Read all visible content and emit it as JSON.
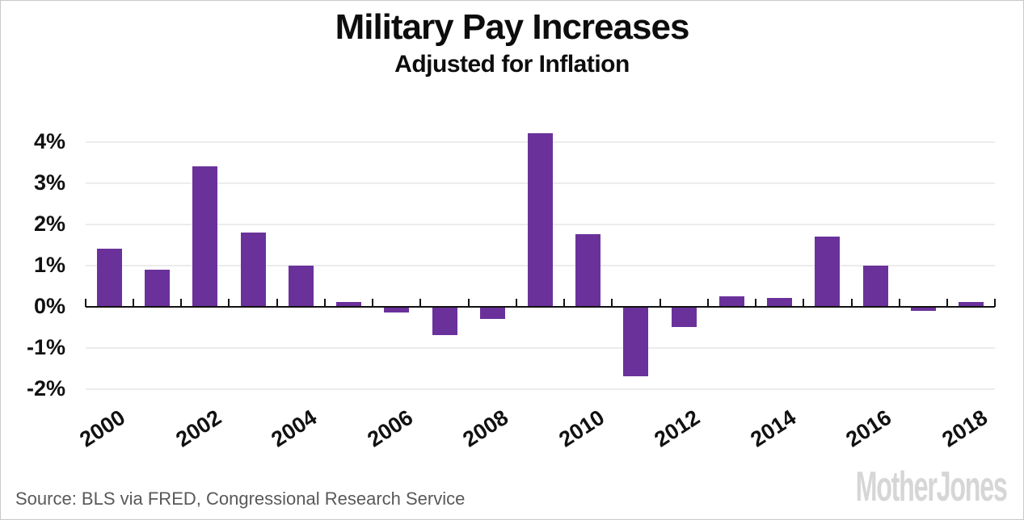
{
  "chart_data": {
    "type": "bar",
    "title": "Military Pay Increases",
    "subtitle": "Adjusted for Inflation",
    "categories": [
      2000,
      2001,
      2002,
      2003,
      2004,
      2005,
      2006,
      2007,
      2008,
      2009,
      2010,
      2011,
      2012,
      2013,
      2014,
      2015,
      2016,
      2017,
      2018
    ],
    "values": [
      1.4,
      0.9,
      3.4,
      1.8,
      1.0,
      0.1,
      -0.15,
      -0.7,
      -0.3,
      4.2,
      1.75,
      -1.7,
      -0.5,
      0.25,
      0.2,
      1.7,
      1.0,
      -0.1,
      0.1
    ],
    "unit": "%",
    "xlabel": "",
    "ylabel": "",
    "ylim": [
      -2.4,
      4.4
    ],
    "y_tick_values": [
      4,
      3,
      2,
      1,
      0,
      -1,
      -2
    ],
    "y_tick_labels": [
      "4%",
      "3%",
      "2%",
      "1%",
      "0%",
      "-1%",
      "-2%"
    ],
    "x_tick_labels": [
      "2000",
      "2002",
      "2004",
      "2006",
      "2008",
      "2010",
      "2012",
      "2014",
      "2016",
      "2018"
    ],
    "grid": "horizontal",
    "legend": "none",
    "bar_color": "#6a319b"
  },
  "footer": {
    "source": "Source: BLS via FRED, Congressional Research Service",
    "brand": "MotherJones"
  },
  "colors": {
    "bar": "#6a319b",
    "axis": "#111111",
    "gridline": "#ececec",
    "source_text": "#595959",
    "brand_text": "#d6d6d6",
    "background": "#ffffff",
    "frame_border": "#c9c9c9"
  }
}
